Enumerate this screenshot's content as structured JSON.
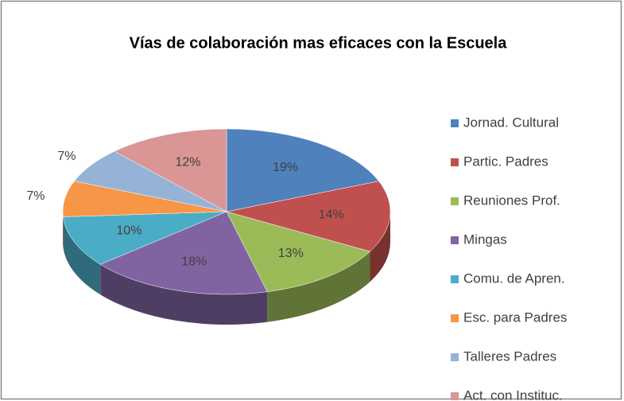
{
  "chart_data": {
    "type": "pie3d",
    "title": "Vías de colaboración mas eficaces con la Escuela",
    "categories": [
      "Jornad. Cultural",
      "Partic. Padres",
      "Reuniones Prof.",
      "Mingas",
      "Comu. de Apren.",
      "Esc. para Padres",
      "Talleres Padres",
      "Act. con Instituc."
    ],
    "values": [
      19,
      14,
      13,
      18,
      10,
      7,
      7,
      12
    ],
    "value_labels": [
      "19%",
      "14%",
      "13%",
      "18%",
      "10%",
      "7%",
      "7%",
      "12%"
    ],
    "colors": [
      "#4f81bd",
      "#c0504d",
      "#9bbb59",
      "#8064a2",
      "#4bacc6",
      "#f79646",
      "#95b3d7",
      "#d99694"
    ],
    "legend": "right"
  }
}
